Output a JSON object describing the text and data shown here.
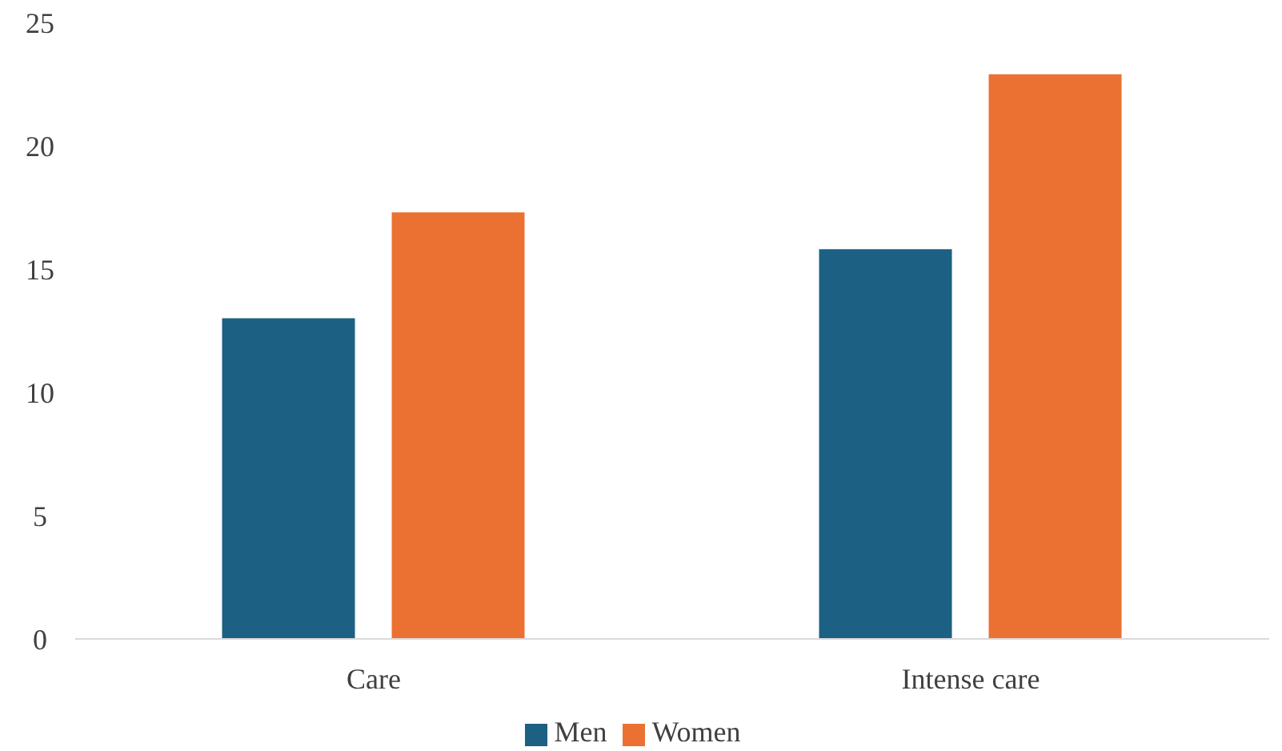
{
  "chart_data": {
    "type": "bar",
    "categories": [
      "Care",
      "Intense care"
    ],
    "series": [
      {
        "name": "Men",
        "color": "#1c6083",
        "values": [
          13.0,
          15.8
        ]
      },
      {
        "name": "Women",
        "color": "#eb7132",
        "values": [
          17.3,
          22.9
        ]
      }
    ],
    "ylim": [
      0,
      25
    ],
    "yticks": [
      0,
      5,
      10,
      15,
      20,
      25
    ],
    "grid": false,
    "legend": "bottom"
  }
}
